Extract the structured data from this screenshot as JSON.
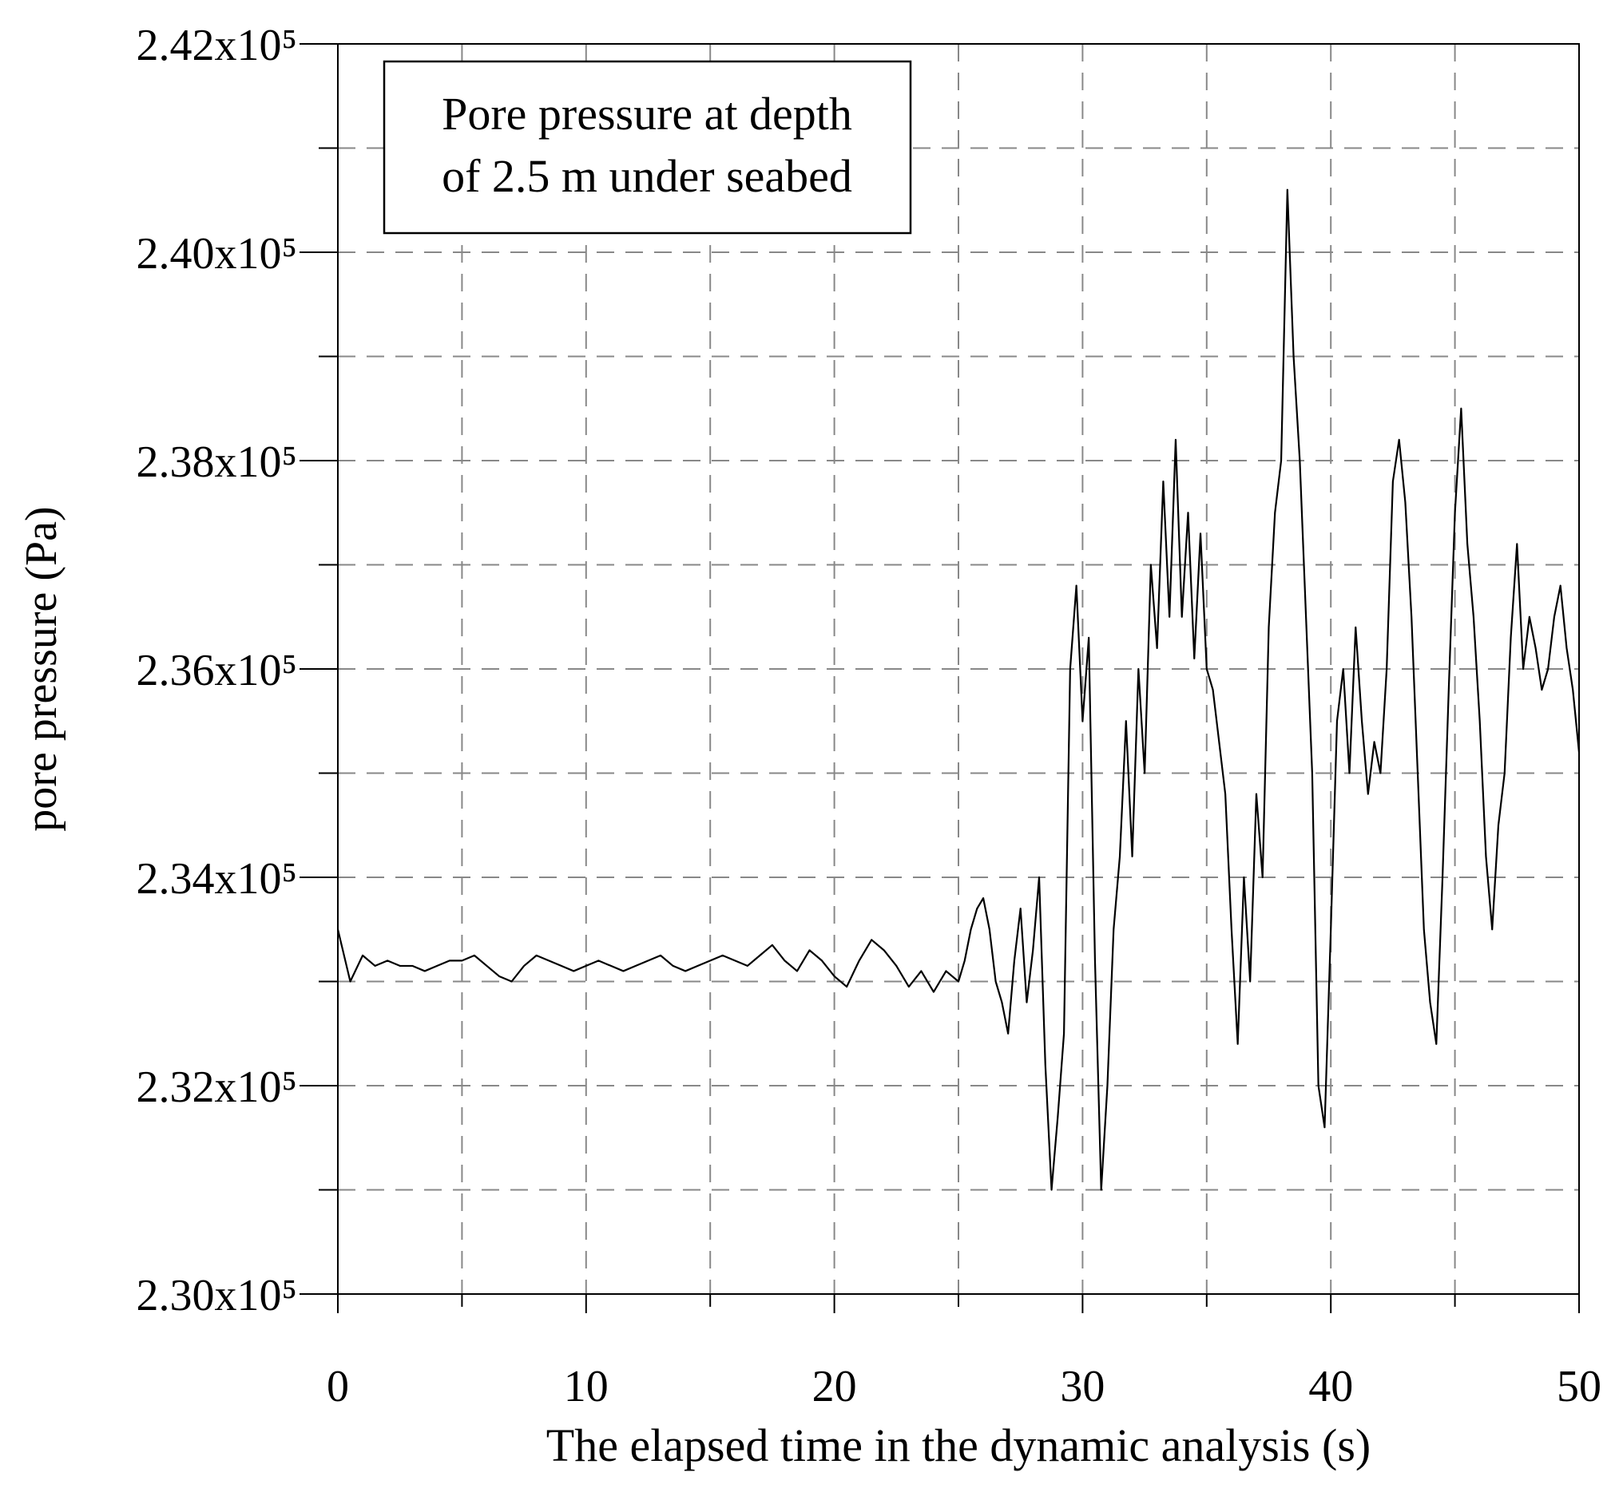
{
  "chart_data": {
    "type": "line",
    "xlabel": "The elapsed time in the dynamic analysis (s)",
    "ylabel": "pore pressure (Pa)",
    "annotation": [
      "Pore pressure at depth",
      "of  2.5 m under seabed"
    ],
    "xlim": [
      0,
      50
    ],
    "ylim": [
      230000,
      242000
    ],
    "xticks": [
      0,
      10,
      20,
      30,
      40,
      50
    ],
    "x_minor_ticks": [
      5,
      15,
      25,
      35,
      45
    ],
    "yticks": [
      {
        "value": 230000,
        "label": "2.30x10⁵"
      },
      {
        "value": 232000,
        "label": "2.32x10⁵"
      },
      {
        "value": 234000,
        "label": "2.34x10⁵"
      },
      {
        "value": 236000,
        "label": "2.36x10⁵"
      },
      {
        "value": 238000,
        "label": "2.38x10⁵"
      },
      {
        "value": 240000,
        "label": "2.40x10⁵"
      },
      {
        "value": 242000,
        "label": "2.42x10⁵"
      }
    ],
    "y_minor_ticks": [
      231000,
      233000,
      235000,
      237000,
      239000,
      241000
    ],
    "grid": true,
    "series": [
      {
        "color": "#000000",
        "x": [
          0,
          0.5,
          1,
          1.5,
          2,
          2.5,
          3,
          3.5,
          4,
          4.5,
          5,
          5.5,
          6,
          6.5,
          7,
          7.5,
          8,
          8.5,
          9,
          9.5,
          10,
          10.5,
          11,
          11.5,
          12,
          12.5,
          13,
          13.5,
          14,
          14.5,
          15,
          15.5,
          16,
          16.5,
          17,
          17.5,
          18,
          18.5,
          19,
          19.5,
          20,
          20.5,
          21,
          21.5,
          22,
          22.5,
          23,
          23.5,
          24,
          24.5,
          25,
          25.25,
          25.5,
          25.75,
          26,
          26.25,
          26.5,
          26.75,
          27,
          27.25,
          27.5,
          27.75,
          28,
          28.25,
          28.5,
          28.75,
          29,
          29.25,
          29.5,
          29.75,
          30,
          30.25,
          30.5,
          30.75,
          31,
          31.25,
          31.5,
          31.75,
          32,
          32.25,
          32.5,
          32.75,
          33,
          33.25,
          33.5,
          33.75,
          34,
          34.25,
          34.5,
          34.75,
          35,
          35.25,
          35.5,
          35.75,
          36,
          36.25,
          36.5,
          36.75,
          37,
          37.25,
          37.5,
          37.75,
          38,
          38.25,
          38.5,
          38.75,
          39,
          39.25,
          39.5,
          39.75,
          40,
          40.25,
          40.5,
          40.75,
          41,
          41.25,
          41.5,
          41.75,
          42,
          42.25,
          42.5,
          42.75,
          43,
          43.25,
          43.5,
          43.75,
          44,
          44.25,
          44.5,
          44.75,
          45,
          45.25,
          45.5,
          45.75,
          46,
          46.25,
          46.5,
          46.75,
          47,
          47.25,
          47.5,
          47.75,
          48,
          48.25,
          48.5,
          48.75,
          49,
          49.25,
          49.5,
          49.75,
          50
        ],
        "values": [
          233500,
          233000,
          233250,
          233150,
          233200,
          233150,
          233150,
          233100,
          233150,
          233200,
          233200,
          233250,
          233150,
          233050,
          233000,
          233150,
          233250,
          233200,
          233150,
          233100,
          233150,
          233200,
          233150,
          233100,
          233150,
          233200,
          233250,
          233150,
          233100,
          233150,
          233200,
          233250,
          233200,
          233150,
          233250,
          233350,
          233200,
          233100,
          233300,
          233200,
          233050,
          232950,
          233200,
          233400,
          233300,
          233150,
          232950,
          233100,
          232900,
          233100,
          233000,
          233200,
          233500,
          233700,
          233800,
          233500,
          233000,
          232800,
          232500,
          233200,
          233700,
          232800,
          233300,
          234000,
          232200,
          231000,
          231700,
          232500,
          236000,
          236800,
          235500,
          236300,
          233200,
          231000,
          232000,
          233500,
          234200,
          235500,
          234200,
          236000,
          235000,
          237000,
          236200,
          237800,
          236500,
          238200,
          236500,
          237500,
          236100,
          237300,
          236000,
          235800,
          235300,
          234800,
          233500,
          232400,
          234000,
          233000,
          234800,
          234000,
          236400,
          237500,
          238000,
          240600,
          239000,
          238000,
          236500,
          235000,
          232000,
          231600,
          233500,
          235500,
          236000,
          235000,
          236400,
          235500,
          234800,
          235300,
          235000,
          236000,
          237800,
          238200,
          237600,
          236500,
          235000,
          233500,
          232800,
          232400,
          234000,
          235800,
          237500,
          238500,
          237200,
          236500,
          235500,
          234200,
          233500,
          234500,
          235000,
          236300,
          237200,
          236000,
          236500,
          236200,
          235800,
          236000,
          236500,
          236800,
          236200,
          235800,
          235200
        ]
      }
    ]
  }
}
